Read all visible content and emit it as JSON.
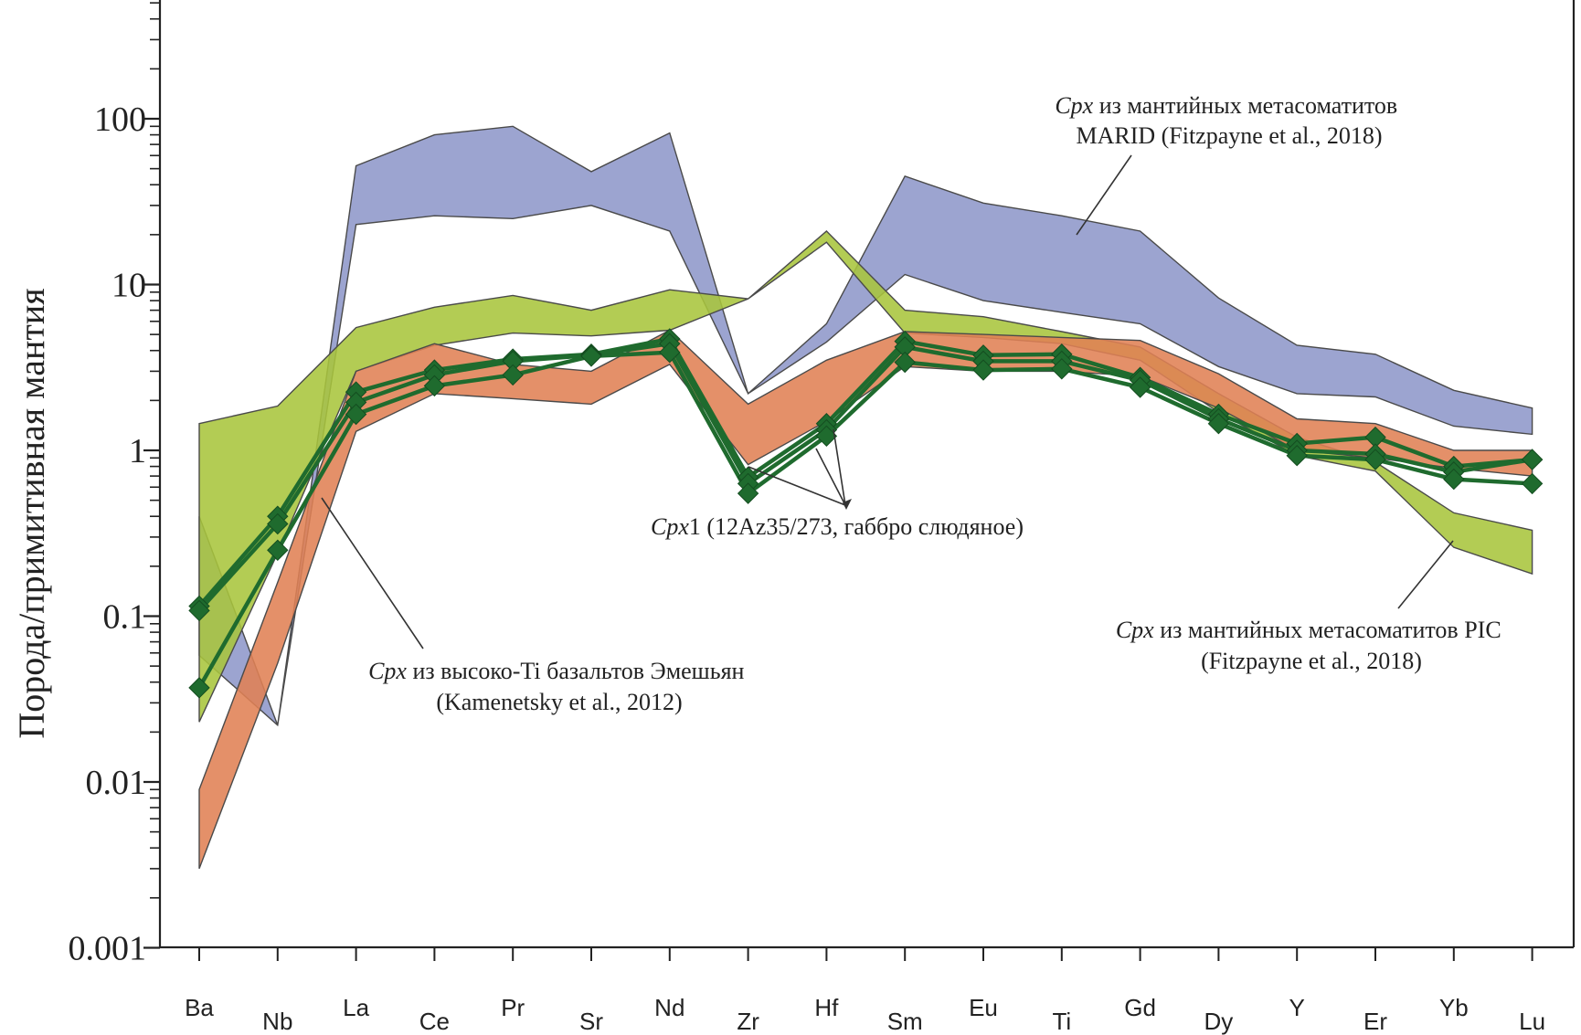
{
  "chart_data": {
    "type": "line",
    "ylabel": "Порода/примитивная мантия",
    "yscale": "log",
    "ylim": [
      0.001,
      500
    ],
    "yticks": [
      {
        "value": 0.001,
        "label": "0.001"
      },
      {
        "value": 0.01,
        "label": "0.01"
      },
      {
        "value": 0.1,
        "label": "0.1"
      },
      {
        "value": 1,
        "label": "1"
      },
      {
        "value": 10,
        "label": "10"
      },
      {
        "value": 100,
        "label": "100"
      }
    ],
    "categories": [
      "Ba",
      "Nb",
      "La",
      "Ce",
      "Pr",
      "Sr",
      "Nd",
      "Zr",
      "Hf",
      "Sm",
      "Eu",
      "Ti",
      "Gd",
      "Dy",
      "Y",
      "Er",
      "Yb",
      "Lu"
    ],
    "bands": [
      {
        "id": "marid",
        "fill": "#8e97c9",
        "upper": [
          0.4,
          0.022,
          52,
          80,
          90,
          48,
          82,
          2.2,
          5.8,
          45,
          31,
          26,
          21,
          8.3,
          4.3,
          3.8,
          2.3,
          1.8
        ],
        "lower": [
          0.058,
          0.022,
          23,
          26,
          25,
          30,
          21,
          2.2,
          4.5,
          11.5,
          8,
          6.8,
          5.8,
          3.2,
          2.2,
          2.1,
          1.4,
          1.25
        ]
      },
      {
        "id": "pic",
        "fill": "#a8c53c",
        "upper": [
          1.45,
          1.85,
          5.5,
          7.3,
          8.6,
          7.0,
          9.3,
          8.2,
          21,
          7.0,
          6.4,
          5.2,
          4.2,
          2.2,
          1.2,
          0.85,
          0.42,
          0.33
        ],
        "lower": [
          0.023,
          0.24,
          3.0,
          4.3,
          5.1,
          4.9,
          5.3,
          8.2,
          18.0,
          5.1,
          4.8,
          4.4,
          3.5,
          1.7,
          0.93,
          0.75,
          0.26,
          0.18
        ]
      },
      {
        "id": "emeshan",
        "fill": "#e08154",
        "upper": [
          0.009,
          0.16,
          3.0,
          4.4,
          3.3,
          3.0,
          5.3,
          1.9,
          3.5,
          5.2,
          5.0,
          4.8,
          4.6,
          2.9,
          1.55,
          1.45,
          1.0,
          1.0
        ],
        "lower": [
          0.003,
          0.052,
          1.3,
          2.2,
          2.05,
          1.9,
          3.3,
          0.82,
          1.5,
          3.2,
          3.0,
          3.0,
          2.8,
          1.8,
          1.0,
          0.9,
          0.78,
          0.7
        ]
      }
    ],
    "series": [
      {
        "values": [
          0.115,
          0.4,
          2.25,
          3.05,
          3.55,
          3.8,
          4.7,
          0.69,
          1.45,
          4.55,
          3.75,
          3.8,
          2.75,
          1.65,
          1.1,
          1.2,
          0.8,
          0.88
        ]
      },
      {
        "values": [
          0.108,
          0.36,
          1.95,
          2.85,
          3.45,
          3.75,
          4.4,
          0.63,
          1.33,
          4.2,
          3.45,
          3.45,
          2.65,
          1.55,
          1.0,
          0.95,
          0.74,
          0.88
        ]
      },
      {
        "values": [
          0.037,
          0.25,
          1.65,
          2.45,
          2.85,
          3.7,
          3.9,
          0.55,
          1.22,
          3.4,
          3.05,
          3.1,
          2.4,
          1.45,
          0.93,
          0.88,
          0.67,
          0.63
        ]
      }
    ],
    "series_color": "#1f6b2e",
    "annotations": [
      {
        "id": "marid",
        "italic": "Cpx",
        "text": " из мантийных метасоматитов",
        "line2": "MARID (Fitzpayne et al., 2018)"
      },
      {
        "id": "cpx1",
        "italic": "Cpx",
        "text": "1  (12Az35/273, габбро слюдяное)",
        "line2": ""
      },
      {
        "id": "emeshan",
        "italic": "Cpx",
        "text": " из высоко-Ti базальтов Эмешьян",
        "line2": "(Kamenetsky et al., 2012)"
      },
      {
        "id": "pic",
        "italic": "Cpx",
        "text": " из мантийных метасоматитов PIC",
        "line2": "(Fitzpayne et al., 2018)"
      }
    ]
  }
}
